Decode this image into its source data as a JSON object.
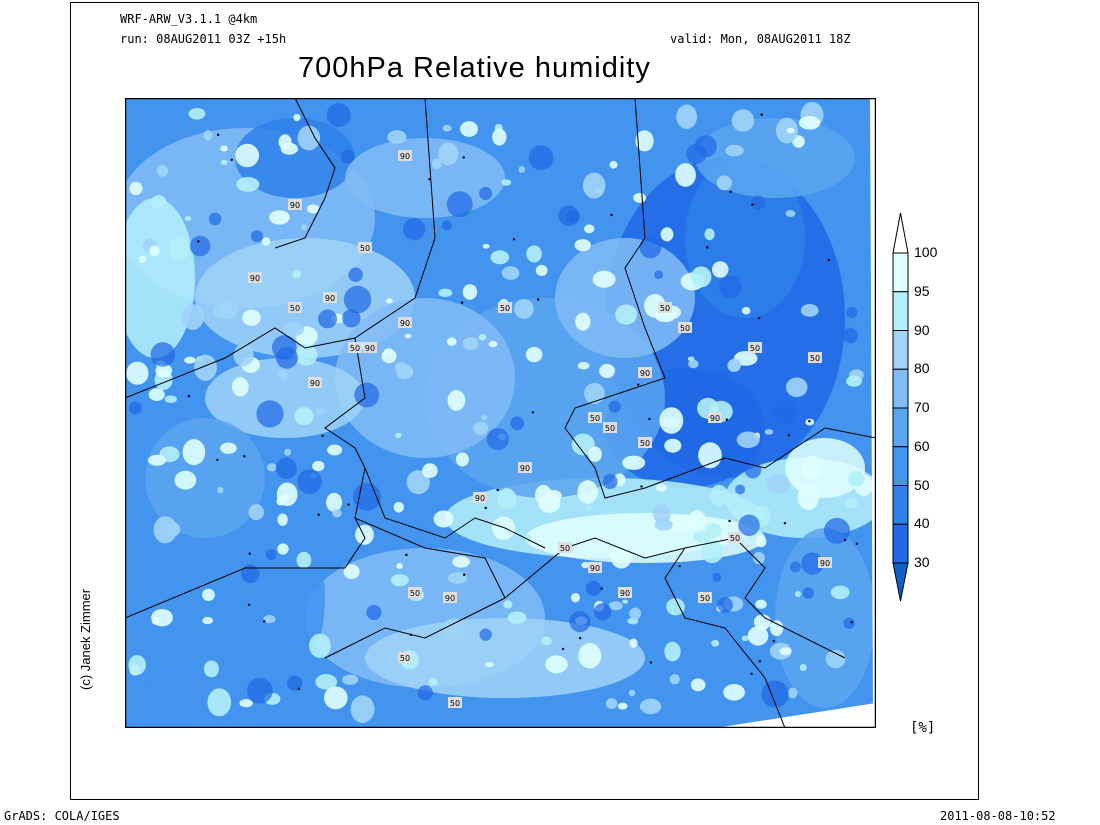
{
  "header": {
    "model": "WRF-ARW_V3.1.1 @4km",
    "run": "run: 08AUG2011 03Z +15h",
    "valid": "valid: Mon, 08AUG2011 18Z",
    "title": "700hPa Relative humidity"
  },
  "map": {
    "variable": "Relative humidity",
    "level": "700hPa",
    "contour_labels": [
      "90",
      "90",
      "50",
      "90",
      "90",
      "90",
      "90",
      "90",
      "50",
      "50",
      "90",
      "50",
      "50",
      "90",
      "90",
      "50",
      "90",
      "50",
      "50",
      "50",
      "50",
      "90",
      "90",
      "50",
      "50",
      "50",
      "50",
      "50",
      "50",
      "90",
      "50",
      "90"
    ]
  },
  "colorbar": {
    "levels": [
      "100",
      "95",
      "90",
      "80",
      "70",
      "60",
      "50",
      "40",
      "30"
    ],
    "colors": [
      "#e0ffff",
      "#b4f0fa",
      "#a0d4f8",
      "#82bcf6",
      "#5aa6f0",
      "#4294ee",
      "#2e80ea",
      "#1f68e6",
      "#1060cc"
    ],
    "over_color": "#ffffff",
    "unit": "[%]"
  },
  "credit": "(c) Janek Zimmer",
  "footer": {
    "left": "GrADS: COLA/IGES",
    "right": "2011-08-08-10:52"
  }
}
